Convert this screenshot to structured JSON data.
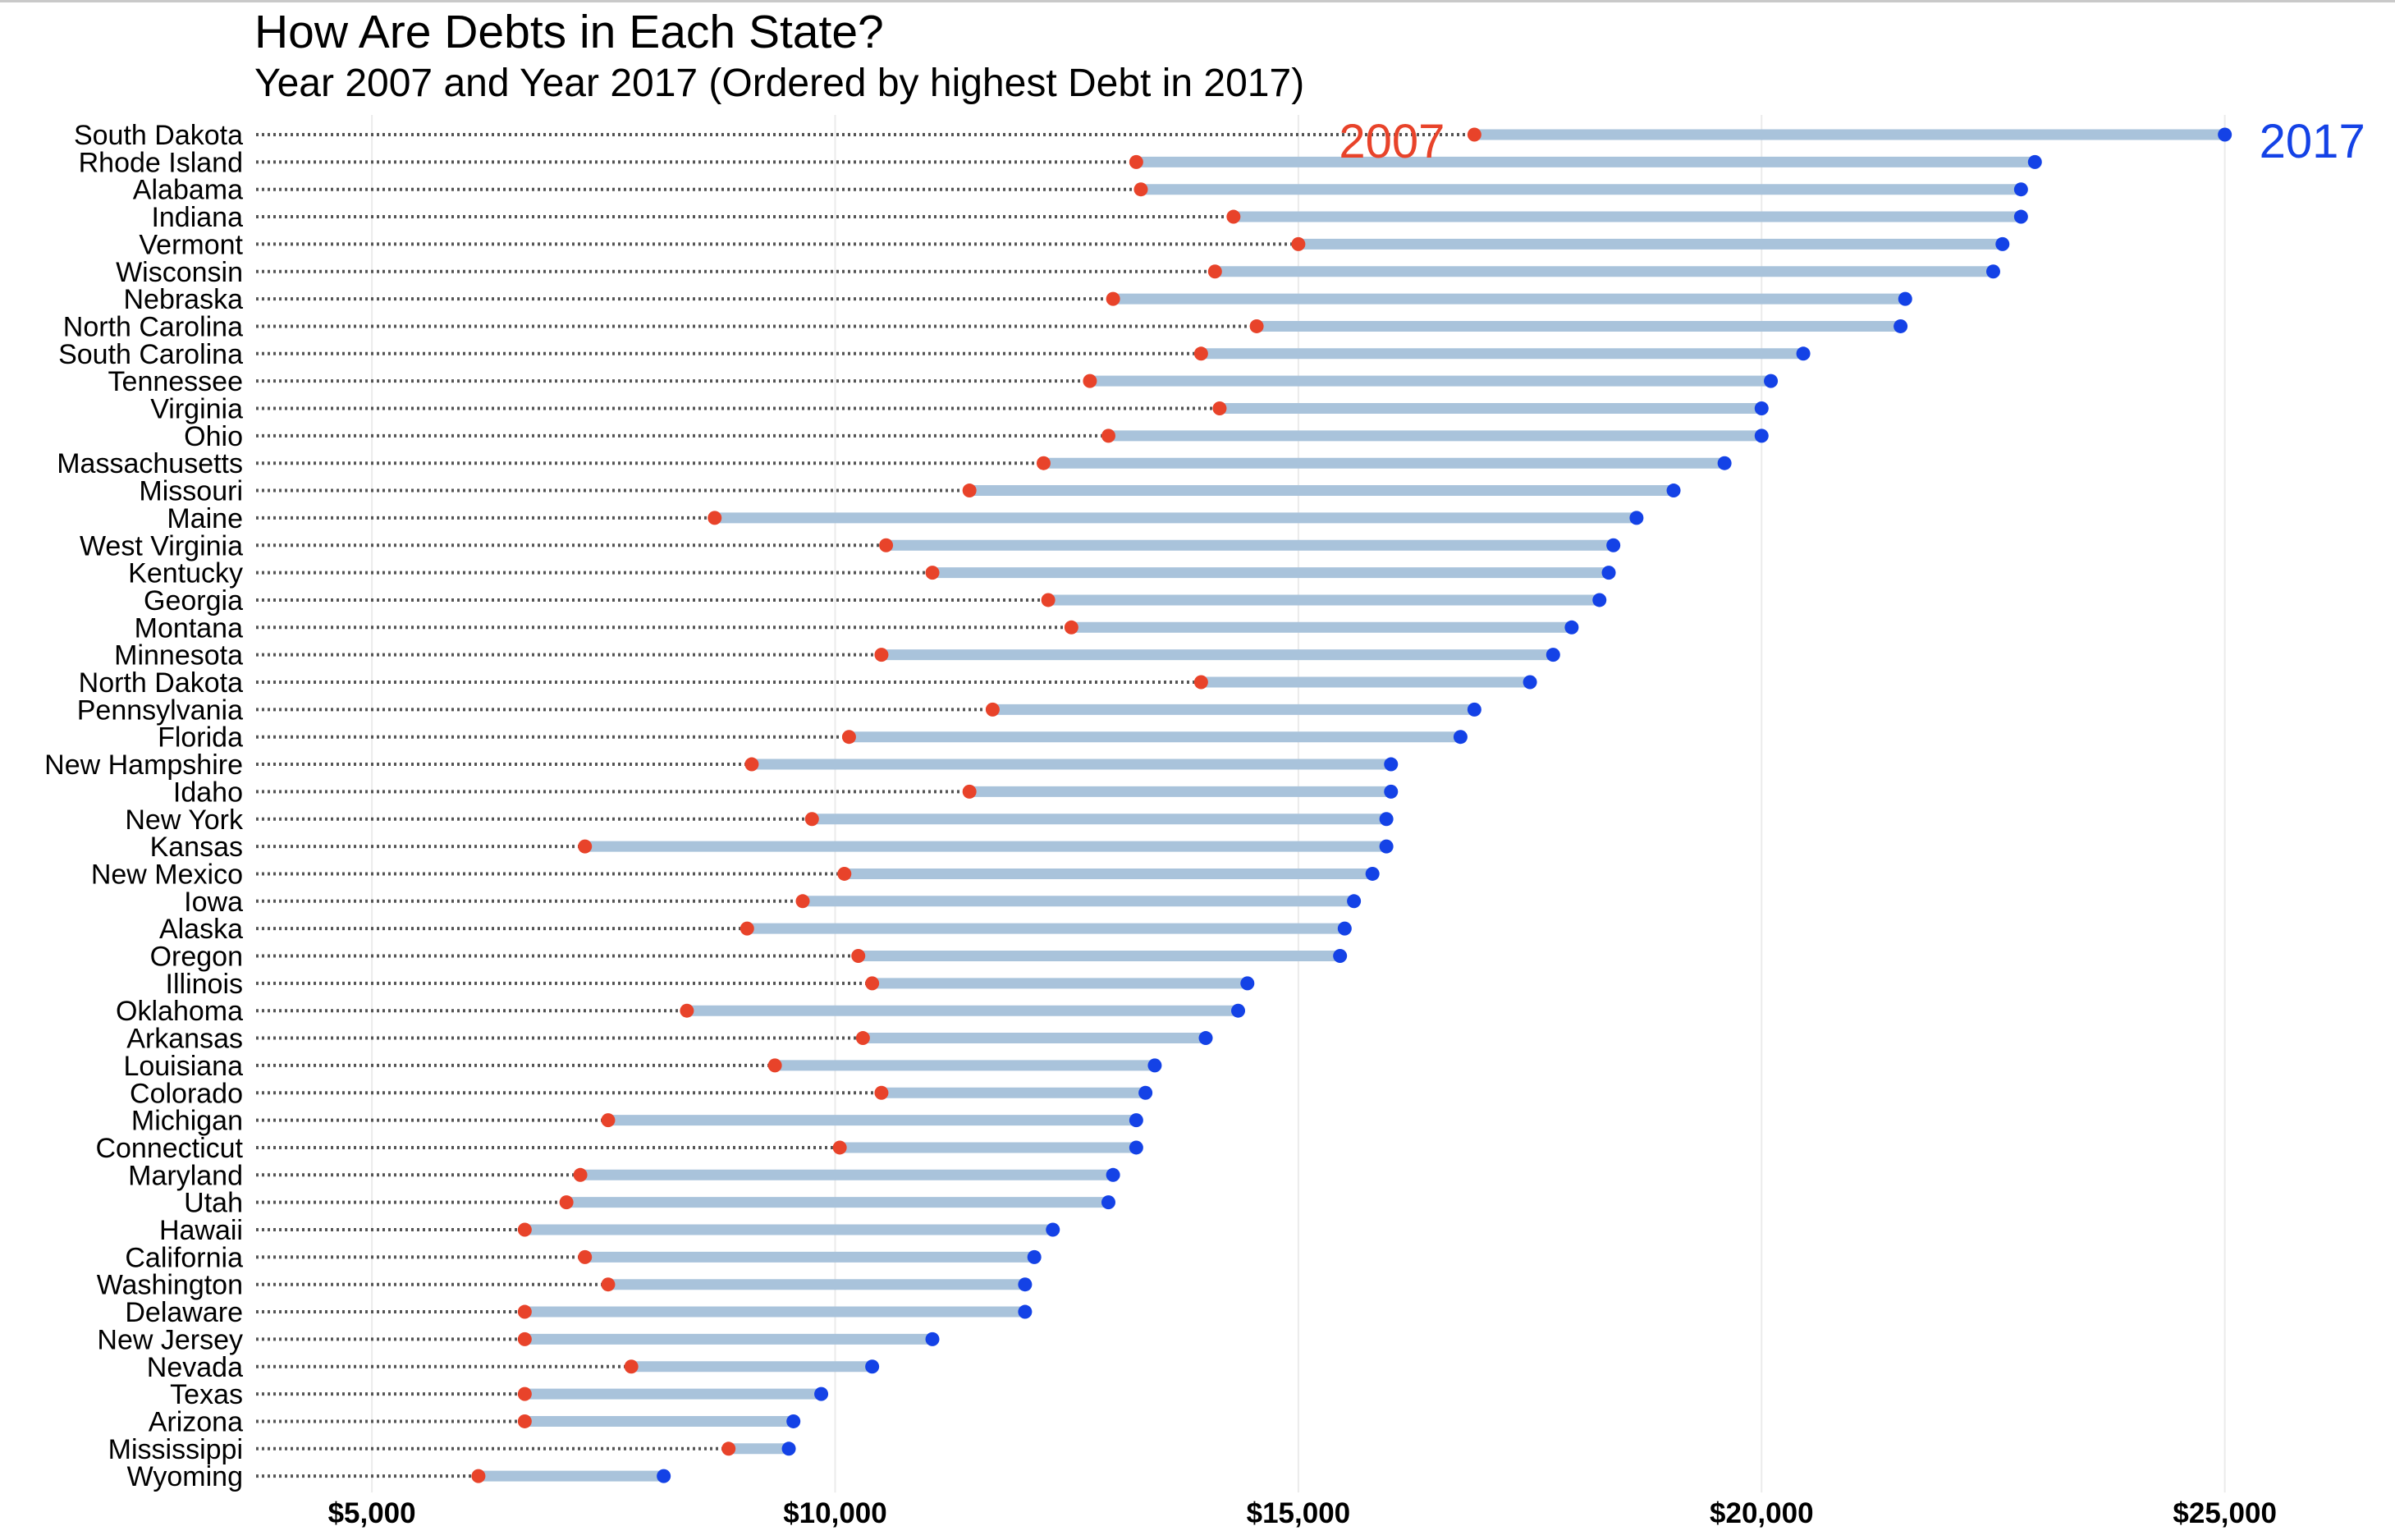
{
  "chart_data": {
    "type": "dumbbell",
    "title": "How Are Debts in Each State?",
    "subtitle": "Year 2007 and Year 2017 (Ordered by highest Debt in 2017)",
    "xlabel": "",
    "ylabel": "",
    "xlim": [
      3750,
      26500
    ],
    "x_ticks": [
      5000,
      10000,
      15000,
      20000,
      25000
    ],
    "x_tick_labels": [
      "$5,000",
      "$10,000",
      "$15,000",
      "$20,000",
      "$25,000"
    ],
    "grid": "vertical gridlines at major ticks",
    "series": [
      {
        "name": "2007",
        "color": "#e8432a",
        "label": "2007"
      },
      {
        "name": "2017",
        "color": "#1442e6",
        "label": "2017"
      }
    ],
    "connector_color": "#a9c3db",
    "leader_color": "#555555",
    "rows": [
      {
        "state": "South Dakota",
        "y2007": 16900,
        "y2017": 25000
      },
      {
        "state": "Rhode Island",
        "y2007": 13250,
        "y2017": 22950
      },
      {
        "state": "Alabama",
        "y2007": 13300,
        "y2017": 22800
      },
      {
        "state": "Indiana",
        "y2007": 14300,
        "y2017": 22800
      },
      {
        "state": "Vermont",
        "y2007": 15000,
        "y2017": 22600
      },
      {
        "state": "Wisconsin",
        "y2007": 14100,
        "y2017": 22500
      },
      {
        "state": "Nebraska",
        "y2007": 13000,
        "y2017": 21550
      },
      {
        "state": "North Carolina",
        "y2007": 14550,
        "y2017": 21500
      },
      {
        "state": "South Carolina",
        "y2007": 13950,
        "y2017": 20450
      },
      {
        "state": "Tennessee",
        "y2007": 12750,
        "y2017": 20100
      },
      {
        "state": "Virginia",
        "y2007": 14150,
        "y2017": 20000
      },
      {
        "state": "Ohio",
        "y2007": 12950,
        "y2017": 20000
      },
      {
        "state": "Massachusetts",
        "y2007": 12250,
        "y2017": 19600
      },
      {
        "state": "Missouri",
        "y2007": 11450,
        "y2017": 19050
      },
      {
        "state": "Maine",
        "y2007": 8700,
        "y2017": 18650
      },
      {
        "state": "West Virginia",
        "y2007": 10550,
        "y2017": 18400
      },
      {
        "state": "Kentucky",
        "y2007": 11050,
        "y2017": 18350
      },
      {
        "state": "Georgia",
        "y2007": 12300,
        "y2017": 18250
      },
      {
        "state": "Montana",
        "y2007": 12550,
        "y2017": 17950
      },
      {
        "state": "Minnesota",
        "y2007": 10500,
        "y2017": 17750
      },
      {
        "state": "North Dakota",
        "y2007": 13950,
        "y2017": 17500
      },
      {
        "state": "Pennsylvania",
        "y2007": 11700,
        "y2017": 16900
      },
      {
        "state": "Florida",
        "y2007": 10150,
        "y2017": 16750
      },
      {
        "state": "New Hampshire",
        "y2007": 9100,
        "y2017": 16000
      },
      {
        "state": "Idaho",
        "y2007": 11450,
        "y2017": 16000
      },
      {
        "state": "New York",
        "y2007": 9750,
        "y2017": 15950
      },
      {
        "state": "Kansas",
        "y2007": 7300,
        "y2017": 15950
      },
      {
        "state": "New Mexico",
        "y2007": 10100,
        "y2017": 15800
      },
      {
        "state": "Iowa",
        "y2007": 9650,
        "y2017": 15600
      },
      {
        "state": "Alaska",
        "y2007": 9050,
        "y2017": 15500
      },
      {
        "state": "Oregon",
        "y2007": 10250,
        "y2017": 15450
      },
      {
        "state": "Illinois",
        "y2007": 10400,
        "y2017": 14450
      },
      {
        "state": "Oklahoma",
        "y2007": 8400,
        "y2017": 14350
      },
      {
        "state": "Arkansas",
        "y2007": 10300,
        "y2017": 14000
      },
      {
        "state": "Louisiana",
        "y2007": 9350,
        "y2017": 13450
      },
      {
        "state": "Colorado",
        "y2007": 10500,
        "y2017": 13350
      },
      {
        "state": "Michigan",
        "y2007": 7550,
        "y2017": 13250
      },
      {
        "state": "Connecticut",
        "y2007": 10050,
        "y2017": 13250
      },
      {
        "state": "Maryland",
        "y2007": 7250,
        "y2017": 13000
      },
      {
        "state": "Utah",
        "y2007": 7100,
        "y2017": 12950
      },
      {
        "state": "Hawaii",
        "y2007": 6650,
        "y2017": 12350
      },
      {
        "state": "California",
        "y2007": 7300,
        "y2017": 12150
      },
      {
        "state": "Washington",
        "y2007": 7550,
        "y2017": 12050
      },
      {
        "state": "Delaware",
        "y2007": 6650,
        "y2017": 12050
      },
      {
        "state": "New Jersey",
        "y2007": 6650,
        "y2017": 11050
      },
      {
        "state": "Nevada",
        "y2007": 7800,
        "y2017": 10400
      },
      {
        "state": "Texas",
        "y2007": 6650,
        "y2017": 9850
      },
      {
        "state": "Arizona",
        "y2007": 6650,
        "y2017": 9550
      },
      {
        "state": "Mississippi",
        "y2007": 8850,
        "y2017": 9500
      },
      {
        "state": "Wyoming",
        "y2007": 6150,
        "y2017": 8150
      }
    ]
  }
}
